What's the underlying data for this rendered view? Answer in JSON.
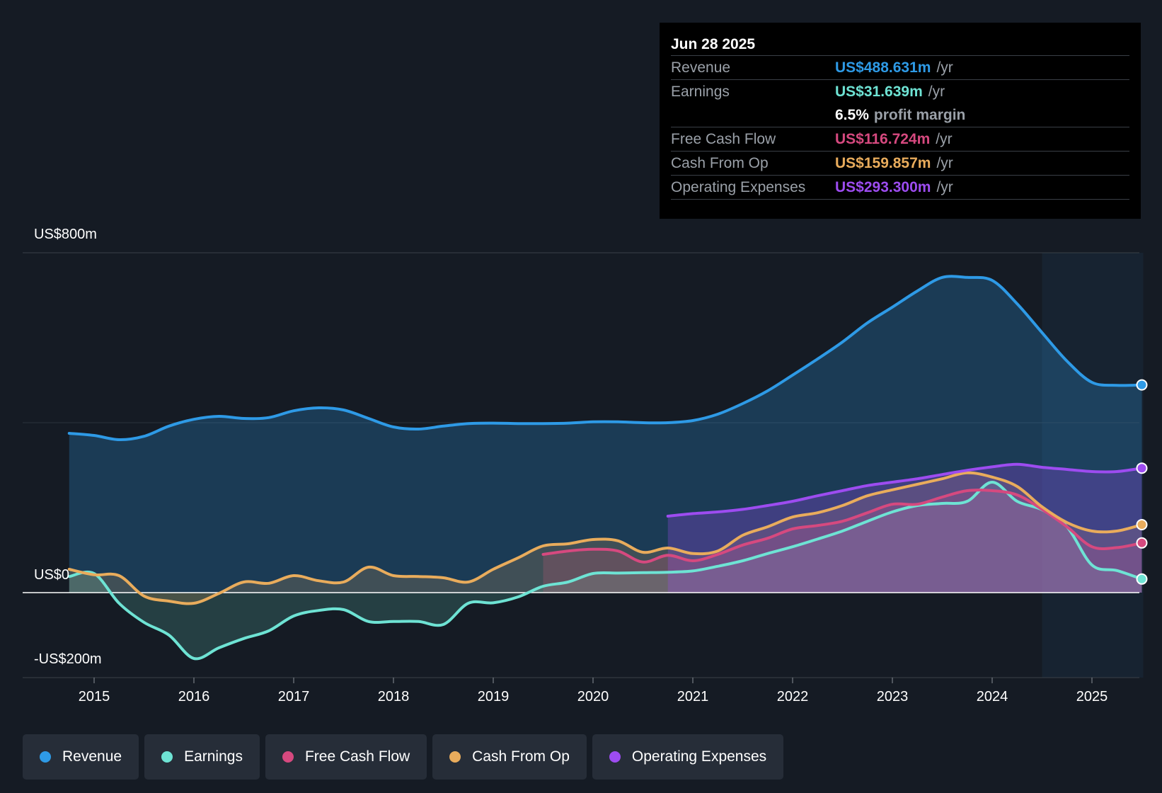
{
  "tooltip": {
    "date": "Jun 28 2025",
    "rows": [
      {
        "label": "Revenue",
        "value": "US$488.631m",
        "unit": "/yr",
        "color": "#2e9ae6"
      },
      {
        "label": "Earnings",
        "value": "US$31.639m",
        "unit": "/yr",
        "color": "#6ee3d4"
      },
      {
        "margin_value": "6.5%",
        "margin_label": "profit margin"
      },
      {
        "label": "Free Cash Flow",
        "value": "US$116.724m",
        "unit": "/yr",
        "color": "#d6497f"
      },
      {
        "label": "Cash From Op",
        "value": "US$159.857m",
        "unit": "/yr",
        "color": "#e9ac5c"
      },
      {
        "label": "Operating Expenses",
        "value": "US$293.300m",
        "unit": "/yr",
        "color": "#9d4cf0"
      }
    ]
  },
  "legend": [
    {
      "label": "Revenue",
      "color": "#2e9ae6"
    },
    {
      "label": "Earnings",
      "color": "#6ee3d4"
    },
    {
      "label": "Free Cash Flow",
      "color": "#d6497f"
    },
    {
      "label": "Cash From Op",
      "color": "#e9ac5c"
    },
    {
      "label": "Operating Expenses",
      "color": "#9d4cf0"
    }
  ],
  "chart_data": {
    "type": "area",
    "y_axis_labels": {
      "top": "US$800m",
      "zero": "US$0",
      "bottom": "-US$200m"
    },
    "ylim": [
      -200,
      800
    ],
    "xlim": [
      2014.75,
      2025.5
    ],
    "forecast_shade_start": 2024.5,
    "x_ticks": [
      2015,
      2016,
      2017,
      2018,
      2019,
      2020,
      2021,
      2022,
      2023,
      2024,
      2025
    ],
    "series": [
      {
        "name": "Revenue",
        "color": "#2e9ae6",
        "points": [
          [
            2014.75,
            375
          ],
          [
            2015.0,
            370
          ],
          [
            2015.25,
            360
          ],
          [
            2015.5,
            368
          ],
          [
            2015.75,
            392
          ],
          [
            2016.0,
            408
          ],
          [
            2016.25,
            415
          ],
          [
            2016.5,
            410
          ],
          [
            2016.75,
            412
          ],
          [
            2017.0,
            428
          ],
          [
            2017.25,
            435
          ],
          [
            2017.5,
            430
          ],
          [
            2017.75,
            410
          ],
          [
            2018.0,
            390
          ],
          [
            2018.25,
            385
          ],
          [
            2018.5,
            392
          ],
          [
            2018.75,
            398
          ],
          [
            2019.0,
            399
          ],
          [
            2019.25,
            398
          ],
          [
            2019.5,
            398
          ],
          [
            2019.75,
            399
          ],
          [
            2020.0,
            402
          ],
          [
            2020.25,
            402
          ],
          [
            2020.5,
            400
          ],
          [
            2020.75,
            400
          ],
          [
            2021.0,
            405
          ],
          [
            2021.25,
            420
          ],
          [
            2021.5,
            445
          ],
          [
            2021.75,
            475
          ],
          [
            2022.0,
            512
          ],
          [
            2022.25,
            550
          ],
          [
            2022.5,
            590
          ],
          [
            2022.75,
            635
          ],
          [
            2023.0,
            672
          ],
          [
            2023.25,
            710
          ],
          [
            2023.5,
            742
          ],
          [
            2023.75,
            742
          ],
          [
            2024.0,
            735
          ],
          [
            2024.25,
            680
          ],
          [
            2024.5,
            612
          ],
          [
            2024.75,
            545
          ],
          [
            2025.0,
            495
          ],
          [
            2025.25,
            488
          ],
          [
            2025.5,
            489
          ]
        ]
      },
      {
        "name": "Earnings",
        "color": "#6ee3d4",
        "points": [
          [
            2014.75,
            38
          ],
          [
            2015.0,
            45
          ],
          [
            2015.25,
            -25
          ],
          [
            2015.5,
            -70
          ],
          [
            2015.75,
            -100
          ],
          [
            2016.0,
            -155
          ],
          [
            2016.25,
            -130
          ],
          [
            2016.5,
            -108
          ],
          [
            2016.75,
            -90
          ],
          [
            2017.0,
            -55
          ],
          [
            2017.25,
            -42
          ],
          [
            2017.5,
            -40
          ],
          [
            2017.75,
            -68
          ],
          [
            2018.0,
            -68
          ],
          [
            2018.25,
            -68
          ],
          [
            2018.5,
            -75
          ],
          [
            2018.75,
            -25
          ],
          [
            2019.0,
            -24
          ],
          [
            2019.25,
            -10
          ],
          [
            2019.5,
            15
          ],
          [
            2019.75,
            25
          ],
          [
            2020.0,
            45
          ],
          [
            2020.25,
            46
          ],
          [
            2020.5,
            47
          ],
          [
            2020.75,
            48
          ],
          [
            2021.0,
            51
          ],
          [
            2021.25,
            62
          ],
          [
            2021.5,
            75
          ],
          [
            2021.75,
            92
          ],
          [
            2022.0,
            108
          ],
          [
            2022.25,
            126
          ],
          [
            2022.5,
            145
          ],
          [
            2022.75,
            168
          ],
          [
            2023.0,
            190
          ],
          [
            2023.25,
            205
          ],
          [
            2023.5,
            210
          ],
          [
            2023.75,
            215
          ],
          [
            2024.0,
            260
          ],
          [
            2024.25,
            215
          ],
          [
            2024.5,
            195
          ],
          [
            2024.75,
            155
          ],
          [
            2025.0,
            65
          ],
          [
            2025.25,
            52
          ],
          [
            2025.5,
            32
          ]
        ]
      },
      {
        "name": "Free Cash Flow",
        "color": "#d6497f",
        "points": [
          [
            2019.5,
            90
          ],
          [
            2019.75,
            98
          ],
          [
            2020.0,
            102
          ],
          [
            2020.25,
            98
          ],
          [
            2020.5,
            72
          ],
          [
            2020.75,
            88
          ],
          [
            2021.0,
            75
          ],
          [
            2021.25,
            90
          ],
          [
            2021.5,
            112
          ],
          [
            2021.75,
            128
          ],
          [
            2022.0,
            150
          ],
          [
            2022.25,
            158
          ],
          [
            2022.5,
            168
          ],
          [
            2022.75,
            188
          ],
          [
            2023.0,
            208
          ],
          [
            2023.25,
            208
          ],
          [
            2023.5,
            225
          ],
          [
            2023.75,
            240
          ],
          [
            2024.0,
            240
          ],
          [
            2024.25,
            230
          ],
          [
            2024.5,
            196
          ],
          [
            2024.75,
            155
          ],
          [
            2025.0,
            108
          ],
          [
            2025.25,
            106
          ],
          [
            2025.5,
            117
          ]
        ]
      },
      {
        "name": "Cash From Op",
        "color": "#e9ac5c",
        "points": [
          [
            2014.75,
            55
          ],
          [
            2015.0,
            42
          ],
          [
            2015.25,
            40
          ],
          [
            2015.5,
            -8
          ],
          [
            2015.75,
            -20
          ],
          [
            2016.0,
            -25
          ],
          [
            2016.25,
            -2
          ],
          [
            2016.5,
            25
          ],
          [
            2016.75,
            22
          ],
          [
            2017.0,
            40
          ],
          [
            2017.25,
            28
          ],
          [
            2017.5,
            25
          ],
          [
            2017.75,
            60
          ],
          [
            2018.0,
            40
          ],
          [
            2018.25,
            38
          ],
          [
            2018.5,
            35
          ],
          [
            2018.75,
            25
          ],
          [
            2019.0,
            55
          ],
          [
            2019.25,
            82
          ],
          [
            2019.5,
            110
          ],
          [
            2019.75,
            115
          ],
          [
            2020.0,
            125
          ],
          [
            2020.25,
            122
          ],
          [
            2020.5,
            95
          ],
          [
            2020.75,
            105
          ],
          [
            2021.0,
            92
          ],
          [
            2021.25,
            98
          ],
          [
            2021.5,
            135
          ],
          [
            2021.75,
            155
          ],
          [
            2022.0,
            178
          ],
          [
            2022.25,
            188
          ],
          [
            2022.5,
            205
          ],
          [
            2022.75,
            228
          ],
          [
            2023.0,
            242
          ],
          [
            2023.25,
            255
          ],
          [
            2023.5,
            268
          ],
          [
            2023.75,
            282
          ],
          [
            2024.0,
            272
          ],
          [
            2024.25,
            250
          ],
          [
            2024.5,
            202
          ],
          [
            2024.75,
            165
          ],
          [
            2025.0,
            145
          ],
          [
            2025.25,
            145
          ],
          [
            2025.5,
            160
          ]
        ]
      },
      {
        "name": "Operating Expenses",
        "color": "#9d4cf0",
        "points": [
          [
            2020.75,
            180
          ],
          [
            2021.0,
            186
          ],
          [
            2021.25,
            190
          ],
          [
            2021.5,
            196
          ],
          [
            2021.75,
            205
          ],
          [
            2022.0,
            215
          ],
          [
            2022.25,
            228
          ],
          [
            2022.5,
            240
          ],
          [
            2022.75,
            252
          ],
          [
            2023.0,
            260
          ],
          [
            2023.25,
            268
          ],
          [
            2023.5,
            278
          ],
          [
            2023.75,
            288
          ],
          [
            2024.0,
            296
          ],
          [
            2024.25,
            302
          ],
          [
            2024.5,
            295
          ],
          [
            2024.75,
            290
          ],
          [
            2025.0,
            285
          ],
          [
            2025.25,
            285
          ],
          [
            2025.5,
            293
          ]
        ]
      }
    ]
  }
}
